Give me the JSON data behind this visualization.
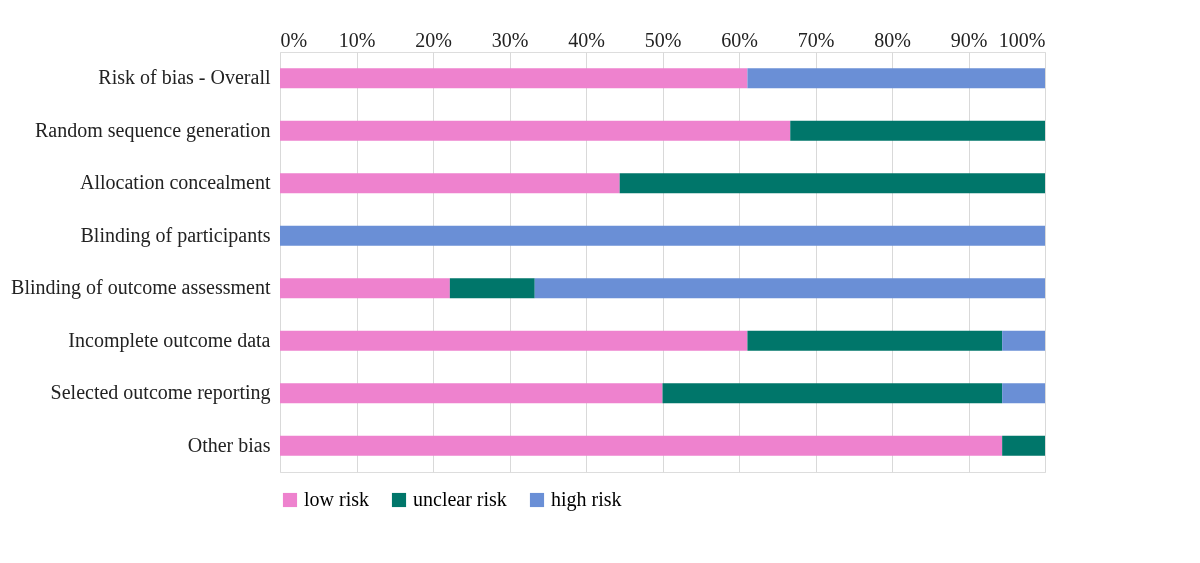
{
  "chart_data": {
    "type": "bar",
    "orientation": "horizontal",
    "stacked": true,
    "categories": [
      "Risk of bias - Overall",
      "Random sequence generation",
      "Allocation concealment",
      "Blinding of participants",
      "Blinding of outcome assessment",
      "Incomplete outcome data",
      "Selected outcome reporting",
      "Other bias"
    ],
    "series": [
      {
        "name": "low risk",
        "color": "#ee82ce",
        "values": [
          61.1,
          66.7,
          44.4,
          0,
          22.2,
          61.1,
          50.0,
          94.4
        ]
      },
      {
        "name": "unclear risk",
        "color": "#00766a",
        "values": [
          0,
          33.3,
          55.6,
          0,
          11.1,
          33.3,
          44.4,
          5.6
        ]
      },
      {
        "name": "high risk",
        "color": "#6a8fd6",
        "values": [
          38.9,
          0,
          0,
          100,
          66.7,
          5.6,
          5.6,
          0
        ]
      }
    ],
    "xlim": [
      0,
      100
    ],
    "xticks": [
      {
        "value": 0,
        "label": "0%"
      },
      {
        "value": 10,
        "label": "10%"
      },
      {
        "value": 20,
        "label": "20%"
      },
      {
        "value": 30,
        "label": "30%"
      },
      {
        "value": 40,
        "label": "40%"
      },
      {
        "value": 50,
        "label": "50%"
      },
      {
        "value": 60,
        "label": "60%"
      },
      {
        "value": 70,
        "label": "70%"
      },
      {
        "value": 80,
        "label": "80%"
      },
      {
        "value": 90,
        "label": "90%"
      },
      {
        "value": 100,
        "label": "100%"
      }
    ],
    "grid": "x",
    "legend": "bottom"
  }
}
